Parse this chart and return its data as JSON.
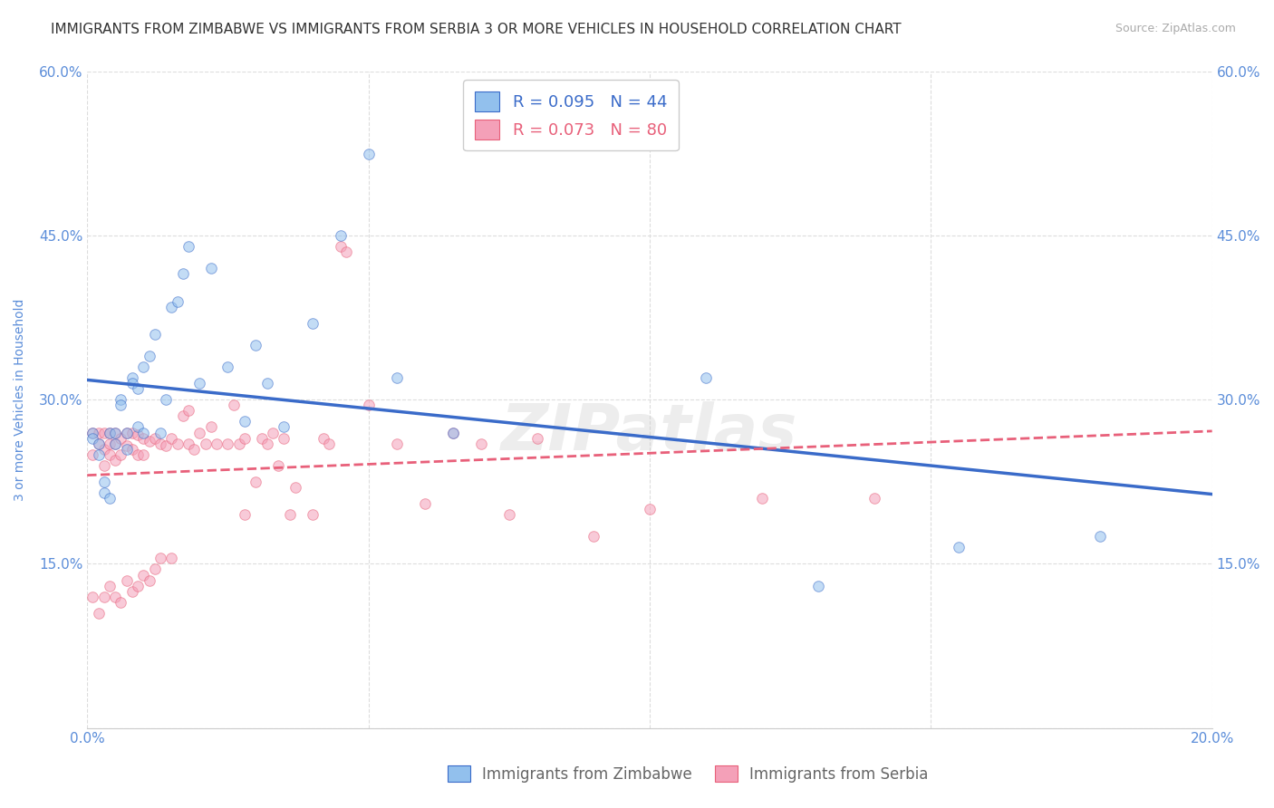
{
  "title": "IMMIGRANTS FROM ZIMBABWE VS IMMIGRANTS FROM SERBIA 3 OR MORE VEHICLES IN HOUSEHOLD CORRELATION CHART",
  "source": "Source: ZipAtlas.com",
  "ylabel": "3 or more Vehicles in Household",
  "x_min": 0.0,
  "x_max": 0.2,
  "y_min": 0.0,
  "y_max": 0.6,
  "x_ticks": [
    0.0,
    0.05,
    0.1,
    0.15,
    0.2
  ],
  "x_tick_labels_bottom": [
    "0.0%",
    "",
    "",
    "",
    "20.0%"
  ],
  "y_ticks": [
    0.0,
    0.15,
    0.3,
    0.45,
    0.6
  ],
  "y_tick_labels_left": [
    "",
    "15.0%",
    "30.0%",
    "45.0%",
    "60.0%"
  ],
  "y_tick_labels_right": [
    "",
    "15.0%",
    "30.0%",
    "45.0%",
    "60.0%"
  ],
  "color_zimbabwe": "#92C0ED",
  "color_serbia": "#F4A0B8",
  "line_color_zimbabwe": "#3A6BC9",
  "line_color_serbia": "#E8607A",
  "R_zimbabwe": 0.095,
  "N_zimbabwe": 44,
  "R_serbia": 0.073,
  "N_serbia": 80,
  "zimbabwe_x": [
    0.001,
    0.001,
    0.002,
    0.002,
    0.003,
    0.003,
    0.004,
    0.004,
    0.005,
    0.005,
    0.006,
    0.006,
    0.007,
    0.007,
    0.008,
    0.008,
    0.009,
    0.009,
    0.01,
    0.01,
    0.011,
    0.012,
    0.013,
    0.014,
    0.015,
    0.016,
    0.017,
    0.018,
    0.02,
    0.022,
    0.025,
    0.028,
    0.03,
    0.032,
    0.035,
    0.04,
    0.045,
    0.05,
    0.055,
    0.065,
    0.11,
    0.13,
    0.155,
    0.18
  ],
  "zimbabwe_y": [
    0.27,
    0.265,
    0.26,
    0.25,
    0.225,
    0.215,
    0.27,
    0.21,
    0.27,
    0.26,
    0.3,
    0.295,
    0.27,
    0.255,
    0.32,
    0.315,
    0.275,
    0.31,
    0.33,
    0.27,
    0.34,
    0.36,
    0.27,
    0.3,
    0.385,
    0.39,
    0.415,
    0.44,
    0.315,
    0.42,
    0.33,
    0.28,
    0.35,
    0.315,
    0.275,
    0.37,
    0.45,
    0.525,
    0.32,
    0.27,
    0.32,
    0.13,
    0.165,
    0.175
  ],
  "serbia_x": [
    0.001,
    0.001,
    0.001,
    0.002,
    0.002,
    0.002,
    0.003,
    0.003,
    0.003,
    0.003,
    0.004,
    0.004,
    0.004,
    0.004,
    0.005,
    0.005,
    0.005,
    0.005,
    0.006,
    0.006,
    0.006,
    0.007,
    0.007,
    0.007,
    0.008,
    0.008,
    0.008,
    0.009,
    0.009,
    0.009,
    0.01,
    0.01,
    0.01,
    0.011,
    0.011,
    0.012,
    0.012,
    0.013,
    0.013,
    0.014,
    0.015,
    0.015,
    0.016,
    0.017,
    0.018,
    0.018,
    0.019,
    0.02,
    0.021,
    0.022,
    0.023,
    0.025,
    0.026,
    0.027,
    0.028,
    0.028,
    0.03,
    0.031,
    0.032,
    0.033,
    0.034,
    0.035,
    0.036,
    0.037,
    0.04,
    0.042,
    0.043,
    0.045,
    0.046,
    0.05,
    0.055,
    0.06,
    0.065,
    0.07,
    0.075,
    0.08,
    0.09,
    0.1,
    0.12,
    0.14
  ],
  "serbia_y": [
    0.27,
    0.25,
    0.12,
    0.27,
    0.26,
    0.105,
    0.27,
    0.255,
    0.24,
    0.12,
    0.27,
    0.26,
    0.25,
    0.13,
    0.27,
    0.26,
    0.245,
    0.12,
    0.265,
    0.25,
    0.115,
    0.27,
    0.258,
    0.135,
    0.27,
    0.255,
    0.125,
    0.268,
    0.25,
    0.13,
    0.265,
    0.25,
    0.14,
    0.262,
    0.135,
    0.265,
    0.145,
    0.26,
    0.155,
    0.258,
    0.265,
    0.155,
    0.26,
    0.285,
    0.26,
    0.29,
    0.255,
    0.27,
    0.26,
    0.275,
    0.26,
    0.26,
    0.295,
    0.26,
    0.265,
    0.195,
    0.225,
    0.265,
    0.26,
    0.27,
    0.24,
    0.265,
    0.195,
    0.22,
    0.195,
    0.265,
    0.26,
    0.44,
    0.435,
    0.295,
    0.26,
    0.205,
    0.27,
    0.26,
    0.195,
    0.265,
    0.175,
    0.2,
    0.21,
    0.21
  ],
  "background_color": "#FFFFFF",
  "grid_color": "#DDDDDD",
  "axis_color": "#5B8DD9",
  "title_fontsize": 11,
  "label_fontsize": 10,
  "tick_fontsize": 11,
  "legend_fontsize": 13,
  "marker_size": 70,
  "marker_alpha": 0.55
}
